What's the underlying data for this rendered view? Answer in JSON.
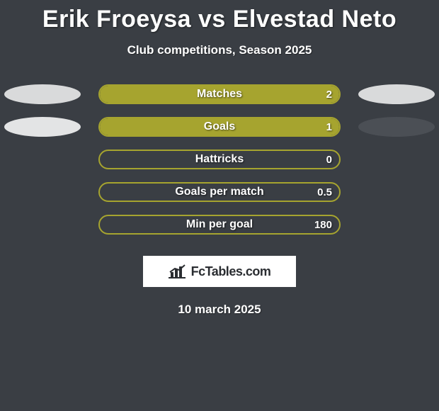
{
  "title": "Erik Froeysa vs Elvestad Neto",
  "subtitle": "Club competitions, Season 2025",
  "brand": "FcTables.com",
  "date": "10 march 2025",
  "colors": {
    "background": "#3a3e44",
    "bar_border": "#a6a42f",
    "bar_fill": "#a6a42f",
    "ellipse_left_0": "#d9dadb",
    "ellipse_right_0": "#d9dadb",
    "ellipse_left_1": "#e3e4e5",
    "ellipse_right_1": "#4b4f55",
    "brand_bg": "#ffffff",
    "brand_text": "#2a2d31"
  },
  "stats": [
    {
      "label": "Matches",
      "value": "2",
      "fill_pct": 100,
      "show_left_ellipse": true,
      "show_right_ellipse": true,
      "left_color": "#d9dadb",
      "right_color": "#d9dadb"
    },
    {
      "label": "Goals",
      "value": "1",
      "fill_pct": 100,
      "show_left_ellipse": true,
      "show_right_ellipse": true,
      "left_color": "#e3e4e5",
      "right_color": "#4b4f55"
    },
    {
      "label": "Hattricks",
      "value": "0",
      "fill_pct": 0,
      "show_left_ellipse": false,
      "show_right_ellipse": false
    },
    {
      "label": "Goals per match",
      "value": "0.5",
      "fill_pct": 0,
      "show_left_ellipse": false,
      "show_right_ellipse": false
    },
    {
      "label": "Min per goal",
      "value": "180",
      "fill_pct": 0,
      "show_left_ellipse": false,
      "show_right_ellipse": false
    }
  ]
}
